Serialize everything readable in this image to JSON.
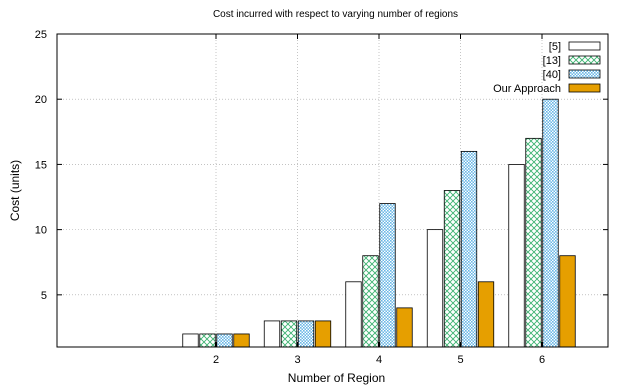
{
  "chart_data": {
    "type": "bar",
    "title": "Cost incurred with respect to varying number of regions",
    "xlabel": "Number of Region",
    "ylabel": "Cost (units)",
    "categories": [
      "2",
      "3",
      "4",
      "5",
      "6"
    ],
    "ylim": [
      1,
      25
    ],
    "yticks": [
      5,
      10,
      15,
      20,
      25
    ],
    "grid": true,
    "legend_position": "top-right",
    "series": [
      {
        "name": "[5]",
        "values": [
          2,
          3,
          6,
          10,
          15
        ],
        "fill": "#ffffff",
        "pattern": "none"
      },
      {
        "name": "[13]",
        "values": [
          2,
          3,
          8,
          13,
          17
        ],
        "fill": "#3cb371",
        "pattern": "crosshatch"
      },
      {
        "name": "[40]",
        "values": [
          2,
          3,
          12,
          16,
          20
        ],
        "fill": "#6ab7e6",
        "pattern": "dots"
      },
      {
        "name": "Our Approach",
        "values": [
          2,
          3,
          4,
          6,
          8
        ],
        "fill": "#e69f00",
        "pattern": "none"
      }
    ]
  }
}
